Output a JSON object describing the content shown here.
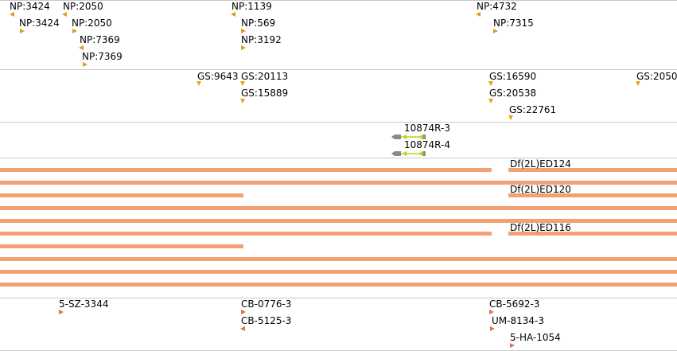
{
  "tracks": {
    "np": {
      "items": [
        {
          "label": "NP:3424",
          "dir": "left"
        },
        {
          "label": "NP:3424",
          "dir": "right"
        },
        {
          "label": "NP:2050",
          "dir": "left"
        },
        {
          "label": "NP:2050",
          "dir": "right"
        },
        {
          "label": "NP:7369",
          "dir": "left"
        },
        {
          "label": "NP:7369",
          "dir": "right"
        },
        {
          "label": "NP:1139",
          "dir": "left"
        },
        {
          "label": "NP:569",
          "dir": "right"
        },
        {
          "label": "NP:3192",
          "dir": "right"
        },
        {
          "label": "NP:4732",
          "dir": "left"
        },
        {
          "label": "NP:7315",
          "dir": "right"
        }
      ]
    },
    "gs": {
      "items": [
        {
          "label": "GS:9643"
        },
        {
          "label": "GS:20113"
        },
        {
          "label": "GS:15889"
        },
        {
          "label": "GS:16590"
        },
        {
          "label": "GS:20538"
        },
        {
          "label": "GS:22761"
        },
        {
          "label": "GS:2050"
        }
      ]
    },
    "genes": {
      "items": [
        {
          "label": "10874R-3"
        },
        {
          "label": "10874R-4"
        }
      ]
    },
    "deficiencies": {
      "labels": [
        "Df(2L)ED124",
        "Df(2L)ED120",
        "Df(2L)ED116"
      ]
    },
    "cb": {
      "items": [
        {
          "label": "5-SZ-3344",
          "dir": "right"
        },
        {
          "label": "CB-0776-3",
          "dir": "right"
        },
        {
          "label": "CB-5125-3",
          "dir": "left"
        },
        {
          "label": "CB-5692-3",
          "dir": "right"
        },
        {
          "label": "UM-8134-3",
          "dir": "right"
        },
        {
          "label": "5-HA-1054",
          "dir": "right"
        }
      ]
    }
  },
  "colors": {
    "np_marker": "#d4a017",
    "gs_marker": "#e8a21a",
    "bar": "#f2a272",
    "cb_marker": "#e8685a",
    "gene_grey": "#8a8a8a",
    "gene_green": "#b5d61c"
  }
}
